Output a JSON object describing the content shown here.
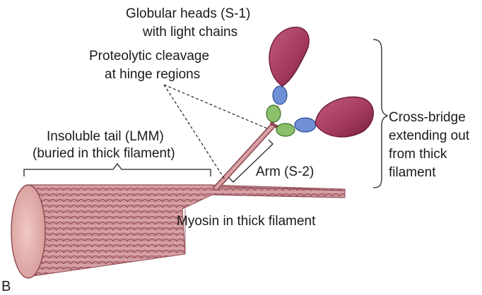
{
  "labels": {
    "globular_heads": [
      "Globular heads (S-1)",
      "with light chains"
    ],
    "proteolytic": [
      "Proteolytic cleavage",
      "at hinge regions"
    ],
    "insoluble_tail": [
      "Insoluble tail (LMM)",
      "(buried in thick filament)"
    ],
    "arm": "Arm (S-2)",
    "cross_bridge": [
      "Cross-bridge",
      "extending out",
      "from thick",
      "filament"
    ],
    "myosin": "Myosin in thick filament",
    "panel": "B"
  },
  "colors": {
    "filament": "#c98a8f",
    "filament_dark": "#8e4a52",
    "head": "#a2385e",
    "head_dark": "#6e1c3c",
    "light_chain_blue": "#6f8fd6",
    "light_chain_green": "#8bbf6a",
    "line": "#222222"
  }
}
